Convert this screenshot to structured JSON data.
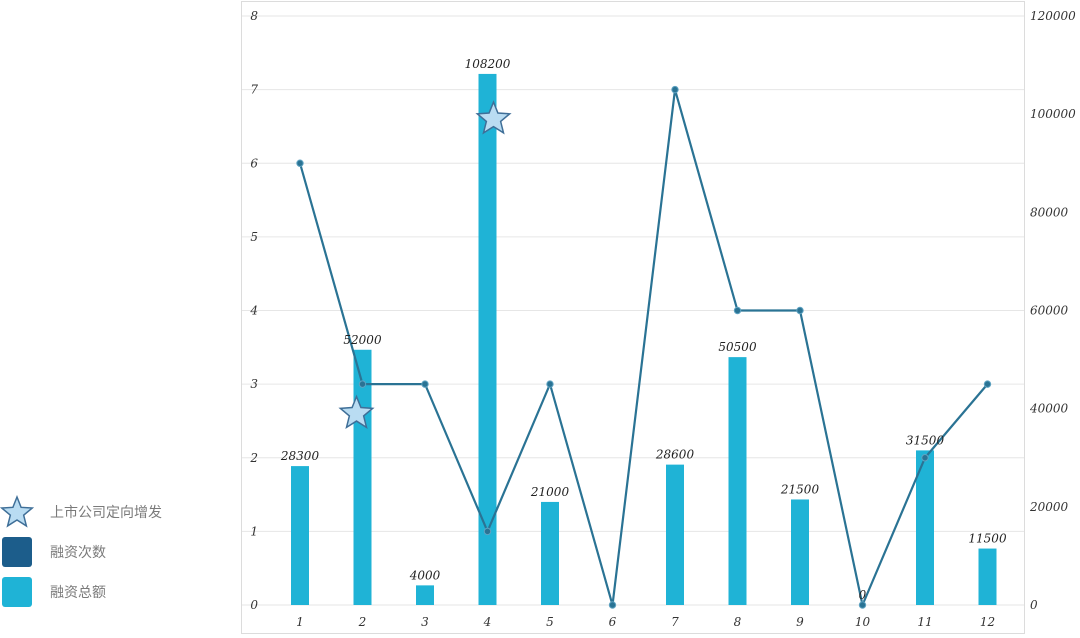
{
  "colors": {
    "bar": "#1fb3d6",
    "line": "#2a7394",
    "star_fill": "#b9dcf2",
    "star_stroke": "#3f6f98",
    "legend_count": "#1c5d8b",
    "grid": "#e6e6e6"
  },
  "legend": [
    {
      "label": "上市公司定向增发",
      "icon": "star-icon"
    },
    {
      "label": "融资次数",
      "icon": "square-dark-icon"
    },
    {
      "label": "融资总额",
      "icon": "square-cyan-icon"
    }
  ],
  "chart_data": {
    "type": "bar",
    "categories": [
      "1",
      "2",
      "3",
      "4",
      "5",
      "6",
      "7",
      "8",
      "9",
      "10",
      "11",
      "12"
    ],
    "series": [
      {
        "name": "融资总额",
        "type": "bar",
        "axis": "right",
        "values": [
          28300,
          52000,
          4000,
          108200,
          21000,
          0,
          28600,
          50500,
          21500,
          0,
          31500,
          11500
        ]
      },
      {
        "name": "融资次数",
        "type": "line",
        "axis": "left",
        "values": [
          6,
          3,
          3,
          1,
          3,
          0,
          7,
          4,
          4,
          0,
          2,
          3
        ]
      }
    ],
    "star_markers": [
      {
        "category": "2",
        "value": 2.6
      },
      {
        "category": "4",
        "value": 6.6
      }
    ],
    "data_labels": [
      "28300",
      "52000",
      "4000",
      "108200",
      "21000",
      "",
      "28600",
      "50500",
      "21500",
      "0",
      "31500",
      "11500"
    ],
    "y_left": {
      "min": 0,
      "max": 8,
      "ticks": [
        "0",
        "1",
        "2",
        "3",
        "4",
        "5",
        "6",
        "7",
        "8"
      ]
    },
    "y_right": {
      "min": 0,
      "max": 120000,
      "ticks": [
        "0",
        "20000",
        "40000",
        "60000",
        "80000",
        "100000",
        "120000"
      ]
    },
    "grid": true,
    "legend_position": "bottom-left"
  }
}
